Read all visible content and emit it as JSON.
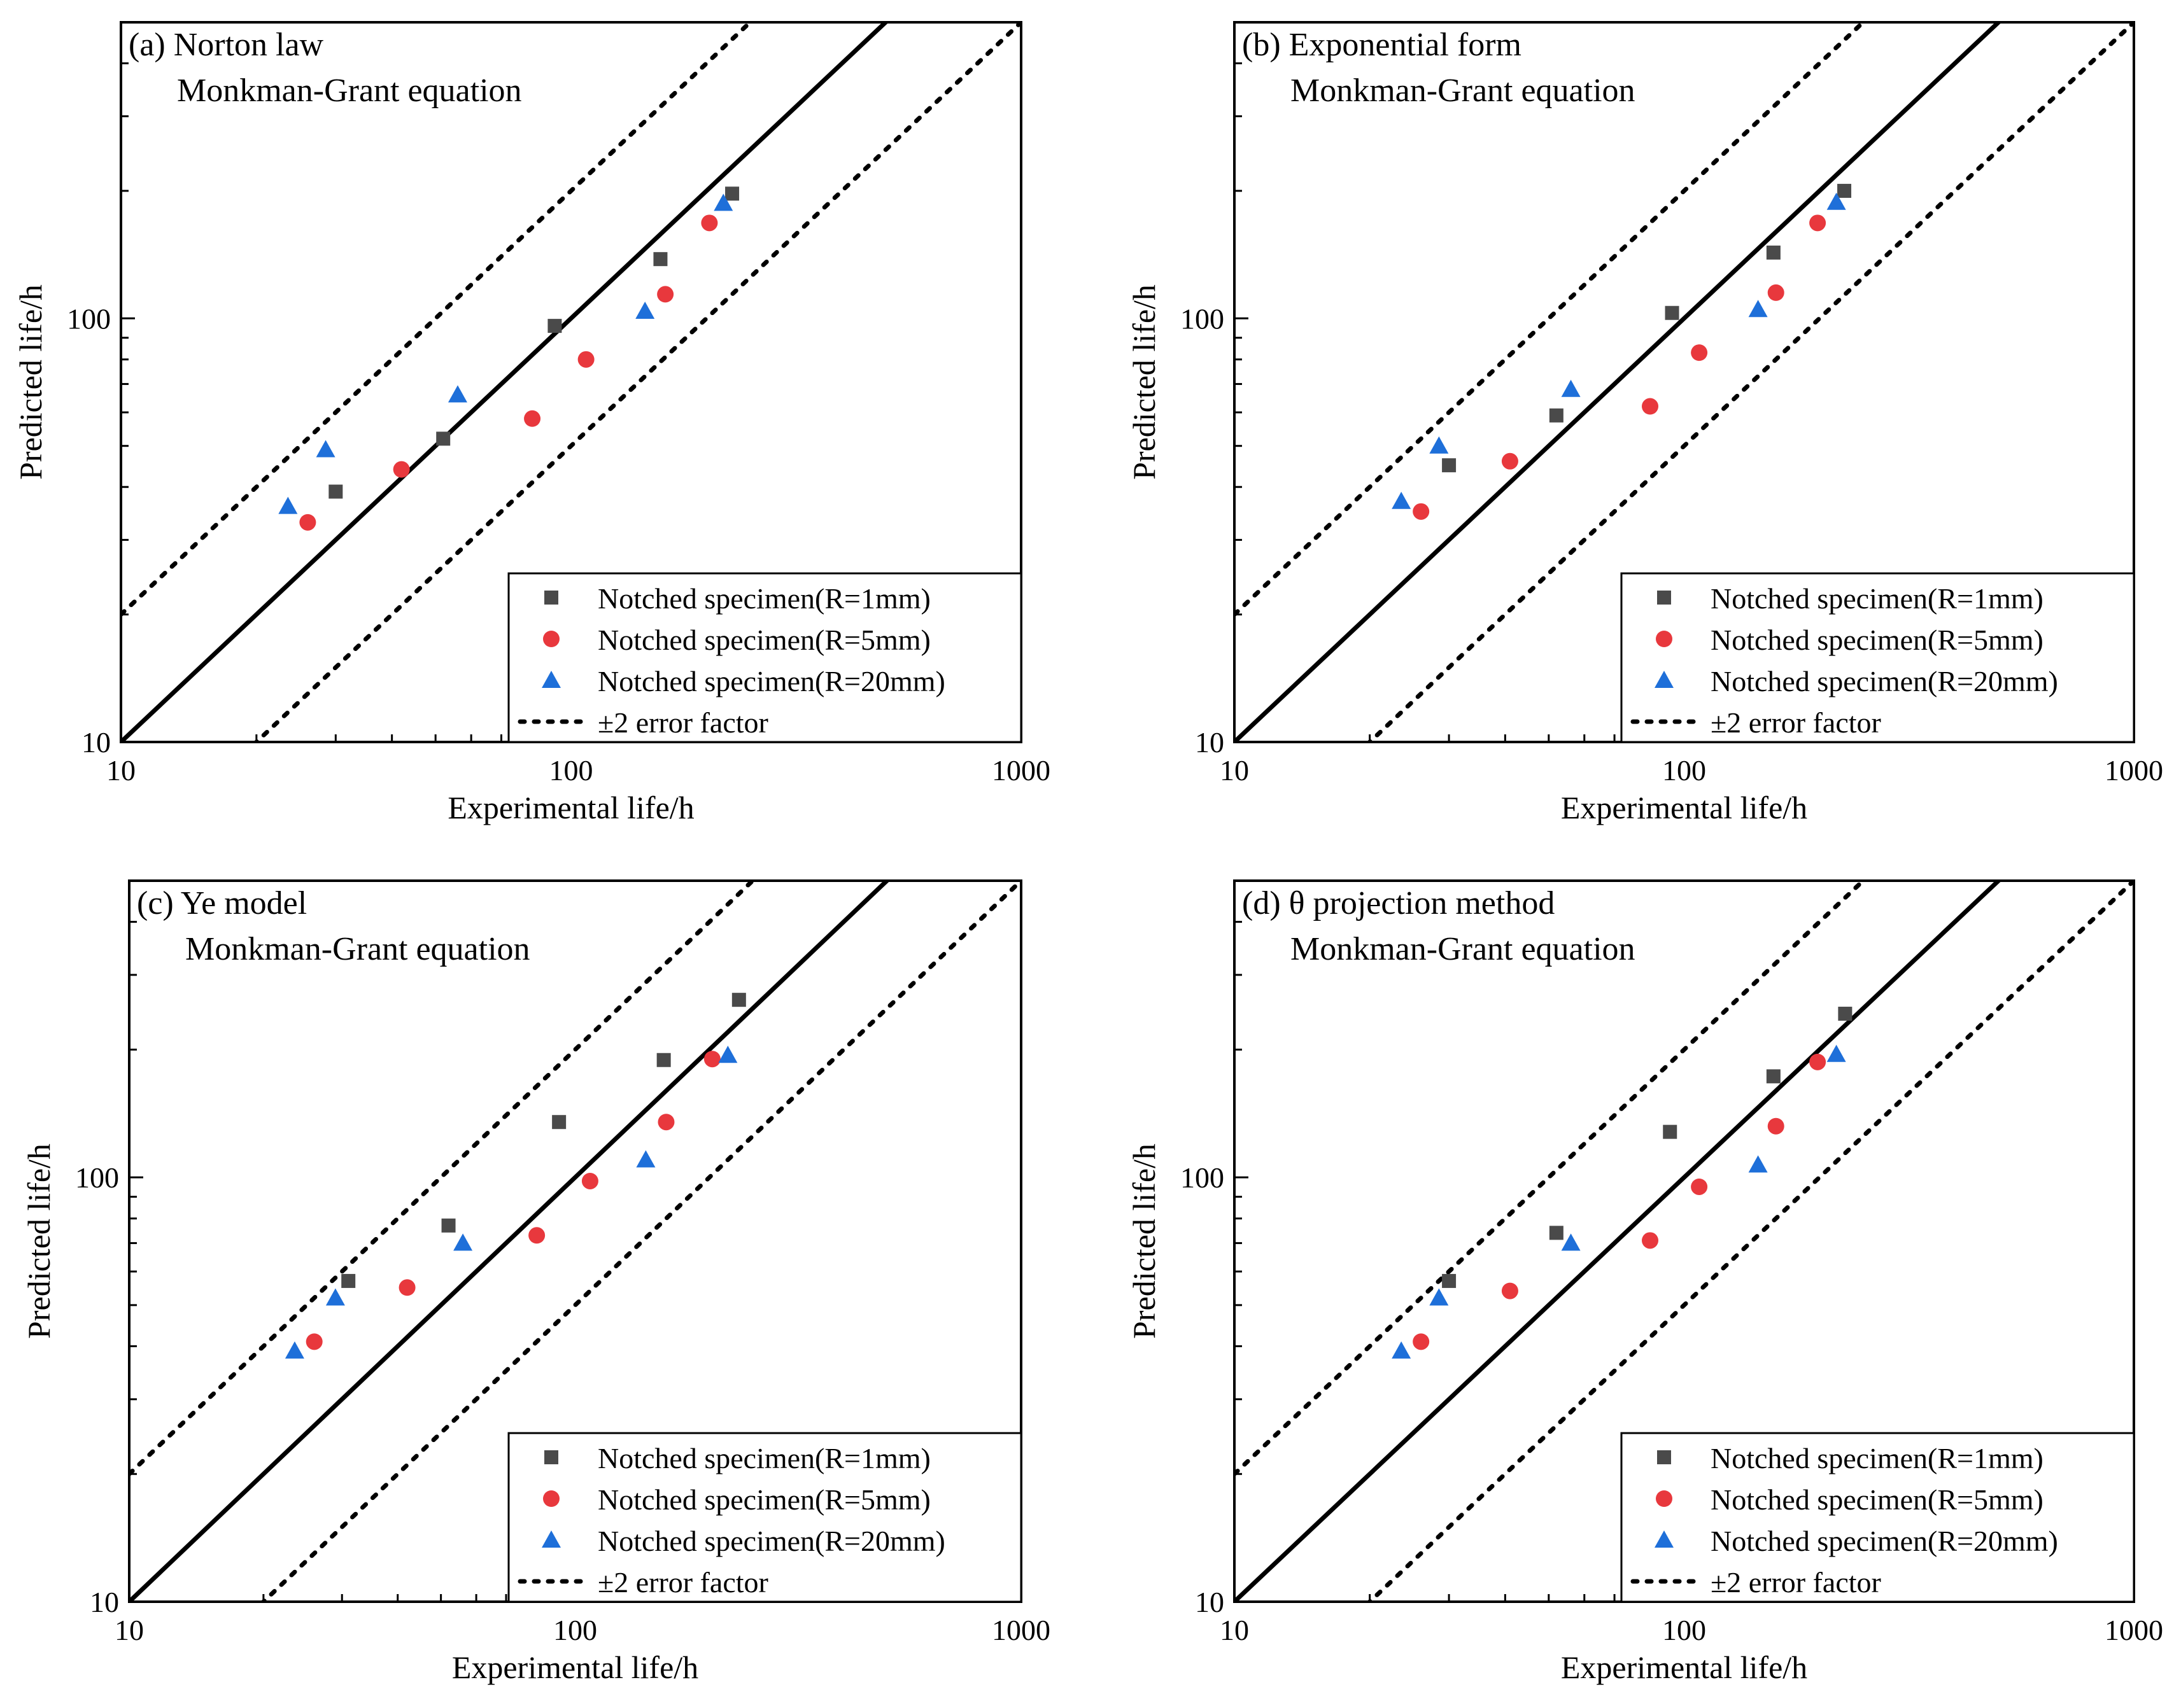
{
  "figure": {
    "title_hidden": "",
    "colors": {
      "r1": "#4a4a4a",
      "r5": "#e8383d",
      "r20": "#1e6fd9",
      "line": "#000000"
    }
  },
  "chart_data": [
    {
      "type": "scatter",
      "panel": "(a) Norton law",
      "subtitle": "Monkman-Grant equation",
      "xlabel": "Experimental life/h",
      "ylabel": "Predicted life/h",
      "xscale": "log",
      "yscale": "log",
      "xlim": [
        10,
        1000
      ],
      "ylim": [
        10,
        500
      ],
      "xticks": [
        10,
        100,
        1000
      ],
      "xtick_labels": [
        "10",
        "100",
        "1000"
      ],
      "yticks": [
        10,
        100
      ],
      "ytick_labels": [
        "10",
        "100"
      ],
      "legend_position": "bottom-right",
      "legend": [
        "Notched specimen(R=1mm)",
        "Notched specimen(R=5mm)",
        "Notched specimen(R=20mm)",
        "±2 error factor"
      ],
      "series": [
        {
          "name": "Notched specimen(R=1mm)",
          "marker": "square",
          "x": [
            30,
            52,
            92,
            158,
            228
          ],
          "y": [
            39,
            52,
            96,
            138,
            197
          ]
        },
        {
          "name": "Notched specimen(R=5mm)",
          "marker": "circle",
          "x": [
            26,
            42,
            82,
            108,
            162,
            203
          ],
          "y": [
            33,
            44,
            58,
            80,
            114,
            168
          ]
        },
        {
          "name": "Notched specimen(R=20mm)",
          "marker": "triangle",
          "x": [
            23.5,
            28.5,
            56,
            146,
            218
          ],
          "y": [
            36,
            49,
            66,
            104,
            187
          ]
        }
      ]
    },
    {
      "type": "scatter",
      "panel": "(b) Exponential form",
      "subtitle": "Monkman-Grant equation",
      "xlabel": "Experimental life/h",
      "ylabel": "Predicted life/h",
      "xscale": "log",
      "yscale": "log",
      "xlim": [
        10,
        1000
      ],
      "ylim": [
        10,
        500
      ],
      "xticks": [
        10,
        100,
        1000
      ],
      "xtick_labels": [
        "10",
        "100",
        "1000"
      ],
      "yticks": [
        10,
        100
      ],
      "ytick_labels": [
        "10",
        "100"
      ],
      "legend_position": "bottom-right",
      "legend": [
        "Notched specimen(R=1mm)",
        "Notched specimen(R=5mm)",
        "Notched specimen(R=20mm)",
        "±2 error factor"
      ],
      "series": [
        {
          "name": "Notched specimen(R=1mm)",
          "marker": "square",
          "x": [
            30,
            52,
            94,
            158,
            227
          ],
          "y": [
            45,
            59,
            103,
            143,
            200
          ]
        },
        {
          "name": "Notched specimen(R=5mm)",
          "marker": "circle",
          "x": [
            26,
            41,
            84,
            108,
            160,
            198
          ],
          "y": [
            35,
            46,
            62,
            83,
            115,
            168
          ]
        },
        {
          "name": "Notched specimen(R=20mm)",
          "marker": "triangle",
          "x": [
            23.5,
            28.5,
            56,
            146,
            218
          ],
          "y": [
            37,
            50,
            68,
            105,
            188
          ]
        }
      ]
    },
    {
      "type": "scatter",
      "panel": "(c) Ye model",
      "subtitle": "Monkman-Grant equation",
      "xlabel": "Experimental life/h",
      "ylabel": "Predicted life/h",
      "xscale": "log",
      "yscale": "log",
      "xlim": [
        10,
        1000
      ],
      "ylim": [
        10,
        500
      ],
      "xticks": [
        10,
        100,
        1000
      ],
      "xtick_labels": [
        "10",
        "100",
        "1000"
      ],
      "yticks": [
        10,
        100
      ],
      "ytick_labels": [
        "10",
        "100"
      ],
      "legend_position": "bottom-right",
      "legend": [
        "Notched specimen(R=1mm)",
        "Notched specimen(R=5mm)",
        "Notched specimen(R=20mm)",
        "±2 error factor"
      ],
      "series": [
        {
          "name": "Notched specimen(R=1mm)",
          "marker": "square",
          "x": [
            31,
            52,
            92,
            158,
            233
          ],
          "y": [
            57,
            77,
            135,
            189,
            262
          ]
        },
        {
          "name": "Notched specimen(R=5mm)",
          "marker": "circle",
          "x": [
            26,
            42,
            82,
            108,
            160,
            203
          ],
          "y": [
            41,
            55,
            73,
            98,
            135,
            190
          ]
        },
        {
          "name": "Notched specimen(R=20mm)",
          "marker": "triangle",
          "x": [
            23.5,
            29,
            56,
            144,
            220
          ],
          "y": [
            39,
            52,
            70,
            110,
            194
          ]
        }
      ]
    },
    {
      "type": "scatter",
      "panel": "(d) θ projection method",
      "subtitle": "Monkman-Grant equation",
      "xlabel": "Experimental life/h",
      "ylabel": "Predicted life/h",
      "xscale": "log",
      "yscale": "log",
      "xlim": [
        10,
        1000
      ],
      "ylim": [
        10,
        500
      ],
      "xticks": [
        10,
        100,
        1000
      ],
      "xtick_labels": [
        "10",
        "100",
        "1000"
      ],
      "yticks": [
        10,
        100
      ],
      "ytick_labels": [
        "10",
        "100"
      ],
      "legend_position": "bottom-right",
      "legend": [
        "Notched specimen(R=1mm)",
        "Notched specimen(R=5mm)",
        "Notched specimen(R=20mm)",
        "±2 error factor"
      ],
      "series": [
        {
          "name": "Notched specimen(R=1mm)",
          "marker": "square",
          "x": [
            30,
            52,
            93,
            158,
            228
          ],
          "y": [
            57,
            74,
            128,
            173,
            243
          ]
        },
        {
          "name": "Notched specimen(R=5mm)",
          "marker": "circle",
          "x": [
            26,
            41,
            84,
            108,
            160,
            198
          ],
          "y": [
            41,
            54,
            71,
            95,
            132,
            187
          ]
        },
        {
          "name": "Notched specimen(R=20mm)",
          "marker": "triangle",
          "x": [
            23.5,
            28.5,
            56,
            146,
            218
          ],
          "y": [
            39,
            52,
            70,
            107,
            195
          ]
        }
      ]
    }
  ]
}
